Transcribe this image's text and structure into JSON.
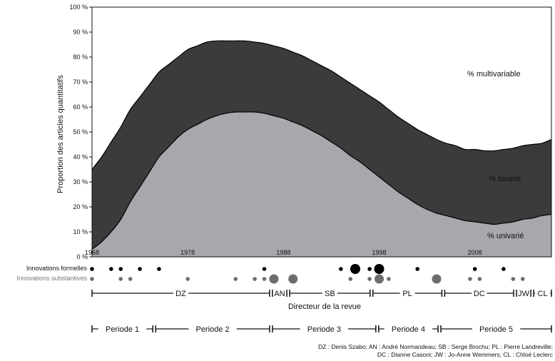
{
  "chart_data": {
    "type": "area",
    "stacked": true,
    "ylabel": "Proportion des articles quantitatifs",
    "yticks": [
      "0 %",
      "10 %",
      "20 %",
      "30 %",
      "40 %",
      "50 %",
      "60 %",
      "70 %",
      "80 %",
      "90 %",
      "100 %"
    ],
    "ylim": [
      0,
      100
    ],
    "xlim": [
      1968,
      2016
    ],
    "xticks": [
      {
        "year": 1968,
        "label": "1968"
      },
      {
        "year": 1978,
        "label": "1978"
      },
      {
        "year": 1988,
        "label": "1988"
      },
      {
        "year": 1998,
        "label": "1998"
      },
      {
        "year": 2008,
        "label": "2008"
      }
    ],
    "x": [
      1968,
      1969,
      1970,
      1971,
      1972,
      1973,
      1974,
      1975,
      1976,
      1977,
      1978,
      1979,
      1980,
      1981,
      1982,
      1983,
      1984,
      1985,
      1986,
      1987,
      1988,
      1989,
      1990,
      1991,
      1992,
      1993,
      1994,
      1995,
      1996,
      1997,
      1998,
      1999,
      2000,
      2001,
      2002,
      2003,
      2004,
      2005,
      2006,
      2007,
      2008,
      2009,
      2010,
      2011,
      2012,
      2013,
      2014,
      2015,
      2016
    ],
    "series": [
      {
        "name": "% univarié",
        "color": "#a7a8ab",
        "values": [
          3,
          6,
          10,
          15,
          22,
          28,
          34,
          40,
          44,
          48,
          51,
          53,
          55,
          56.5,
          57.5,
          58,
          58,
          58,
          57.5,
          56.5,
          55.5,
          54,
          52.5,
          50.5,
          48.5,
          46,
          43.5,
          40.5,
          38,
          35,
          32,
          29,
          26,
          23.5,
          21,
          19,
          17.5,
          16.5,
          15.5,
          14.5,
          14,
          13.5,
          13,
          13.5,
          14,
          15,
          15.5,
          16.5,
          17
        ]
      },
      {
        "name": "% bivarié",
        "color": "#3b3a3c",
        "values": [
          32,
          34,
          36,
          37,
          37,
          36,
          35,
          34,
          33,
          32,
          32,
          31.5,
          31,
          30,
          29,
          28.5,
          28.5,
          28,
          28,
          28,
          28,
          28,
          28,
          28,
          28,
          28.5,
          28.5,
          29,
          29,
          29.5,
          30,
          30,
          30,
          30,
          30,
          30,
          29.5,
          29,
          29,
          28.5,
          29,
          29,
          29.5,
          29.5,
          29.5,
          29.5,
          29.5,
          29,
          30
        ]
      },
      {
        "name": "% multivariable",
        "color": "#ffffff",
        "values": [
          65,
          60,
          54,
          48,
          41,
          36,
          31,
          26,
          23,
          20,
          17,
          15.5,
          14,
          13.5,
          13.5,
          13.5,
          13.5,
          14,
          14.5,
          15.5,
          16.5,
          18,
          19.5,
          21.5,
          23.5,
          25.5,
          28,
          30.5,
          33,
          35.5,
          38,
          41,
          44,
          46.5,
          49,
          51,
          53,
          54.5,
          55.5,
          57,
          57,
          57.5,
          57.5,
          57,
          56.5,
          55.5,
          55,
          54.5,
          53
        ]
      }
    ],
    "innovations_formelles": [
      {
        "year": 1968,
        "size": 1
      },
      {
        "year": 1970,
        "size": 1
      },
      {
        "year": 1971,
        "size": 1
      },
      {
        "year": 1973,
        "size": 1
      },
      {
        "year": 1975,
        "size": 1
      },
      {
        "year": 1986,
        "size": 1
      },
      {
        "year": 1994,
        "size": 1
      },
      {
        "year": 1995.5,
        "size": 3
      },
      {
        "year": 1997,
        "size": 1
      },
      {
        "year": 1998,
        "size": 3
      },
      {
        "year": 2002,
        "size": 1
      },
      {
        "year": 2008,
        "size": 1
      },
      {
        "year": 2011,
        "size": 1
      }
    ],
    "innovations_substantives": [
      {
        "year": 1968,
        "size": 1
      },
      {
        "year": 1971,
        "size": 1
      },
      {
        "year": 1972,
        "size": 1
      },
      {
        "year": 1978,
        "size": 1
      },
      {
        "year": 1983,
        "size": 1
      },
      {
        "year": 1985,
        "size": 1
      },
      {
        "year": 1986,
        "size": 1
      },
      {
        "year": 1987,
        "size": 2
      },
      {
        "year": 1989,
        "size": 2
      },
      {
        "year": 1995,
        "size": 1
      },
      {
        "year": 1997,
        "size": 1
      },
      {
        "year": 1998,
        "size": 2
      },
      {
        "year": 1999,
        "size": 1
      },
      {
        "year": 2004,
        "size": 2
      },
      {
        "year": 2007.5,
        "size": 1
      },
      {
        "year": 2008.5,
        "size": 1
      },
      {
        "year": 2012,
        "size": 1
      },
      {
        "year": 2013,
        "size": 1
      }
    ]
  },
  "annotations": {
    "multivariable": "% multivariable",
    "bivarie": "% bivarié",
    "univarie": "% univarié"
  },
  "rows": {
    "formelles": "Innovations formelles",
    "substantives": "Innovations substantives"
  },
  "directors": {
    "title": "Directeur de la revue",
    "spans": [
      {
        "label": "DZ",
        "from": 1968,
        "to": 1986.7
      },
      {
        "label": "AN",
        "from": 1986.7,
        "to": 1988.5
      },
      {
        "label": "SB",
        "from": 1988.5,
        "to": 1997.2
      },
      {
        "label": "PL",
        "from": 1997.2,
        "to": 2004.7
      },
      {
        "label": "DC",
        "from": 2004.7,
        "to": 2012.2
      },
      {
        "label": "JW",
        "from": 2012.2,
        "to": 2014
      },
      {
        "label": "CL",
        "from": 2014,
        "to": 2016
      }
    ]
  },
  "periods": {
    "spans": [
      {
        "label": "Periode 1",
        "from": 1968,
        "to": 1974.5
      },
      {
        "label": "Periode 2",
        "from": 1974.5,
        "to": 1986.7
      },
      {
        "label": "Periode 3",
        "from": 1986.7,
        "to": 1997.8
      },
      {
        "label": "Periode 4",
        "from": 1997.8,
        "to": 2004.3
      },
      {
        "label": "Periode 5",
        "from": 2004.3,
        "to": 2016
      }
    ]
  },
  "footnote": {
    "line1": "DZ : Denis Szabo; AN : André Normandeau; SB : Serge Brochu; PL : Pierre Landreville;",
    "line2": "DC : Dianne Casoni; JW : Jo-Anne Wemmers; CL : Chloé Leclerc"
  }
}
